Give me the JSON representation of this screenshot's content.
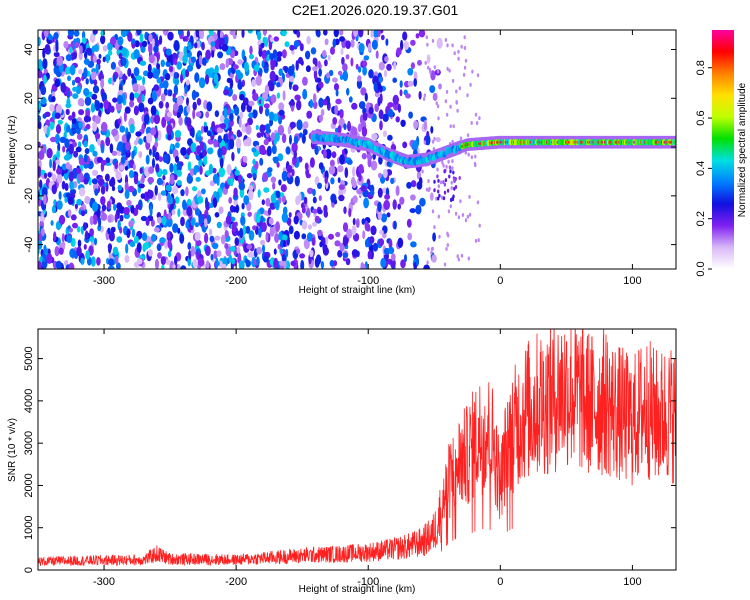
{
  "title": "C2E1.2026.020.19.37.G01",
  "chart_data": [
    {
      "type": "heatmap",
      "title": "C2E1.2026.020.19.37.G01",
      "xlabel": "Height of straight line (km)",
      "ylabel": "Frequency (Hz)",
      "xlim": [
        -350,
        133
      ],
      "ylim": [
        -50,
        48
      ],
      "xticks": [
        -300,
        -200,
        -100,
        0,
        100
      ],
      "yticks": [
        -40,
        -20,
        0,
        20,
        40
      ],
      "colorbar": {
        "label": "Normalized spectral amplitude",
        "range": [
          0,
          0.95
        ],
        "ticks": [
          0.0,
          0.2,
          0.4,
          0.6,
          0.8
        ],
        "colormap": [
          "#ffffff",
          "#d8b8f8",
          "#7f20f0",
          "#1010e0",
          "#0080ff",
          "#00e0e0",
          "#00e000",
          "#c0ff00",
          "#ffe000",
          "#ff8000",
          "#ff0000",
          "#ff00a0"
        ]
      },
      "ridge": {
        "description_points": [
          {
            "x": -140,
            "y": 4
          },
          {
            "x": -120,
            "y": 3
          },
          {
            "x": -100,
            "y": 1
          },
          {
            "x": -85,
            "y": -3
          },
          {
            "x": -70,
            "y": -6
          },
          {
            "x": -55,
            "y": -5
          },
          {
            "x": -40,
            "y": -2
          },
          {
            "x": -25,
            "y": 1
          },
          {
            "x": 0,
            "y": 2
          },
          {
            "x": 50,
            "y": 2
          },
          {
            "x": 100,
            "y": 2
          },
          {
            "x": 133,
            "y": 2
          }
        ],
        "peak_amplitude_region_x": [
          -30,
          133
        ],
        "peak_amplitude": 0.9
      },
      "noise_floor_x_range": [
        -350,
        -55
      ],
      "secondary_feature": {
        "x": -320,
        "y": 8
      }
    },
    {
      "type": "line",
      "xlabel": "Height of straight line (km)",
      "ylabel": "SNR (10 * v/v)",
      "xlim": [
        -350,
        133
      ],
      "ylim": [
        0,
        5700
      ],
      "xticks": [
        -300,
        -200,
        -100,
        0,
        100
      ],
      "yticks": [
        0,
        1000,
        2000,
        3000,
        4000,
        5000
      ],
      "color": "#ff2020",
      "series": [
        {
          "name": "SNR",
          "x": [
            -350,
            -320,
            -300,
            -270,
            -260,
            -250,
            -220,
            -200,
            -180,
            -160,
            -140,
            -120,
            -100,
            -90,
            -80,
            -70,
            -60,
            -55,
            -50,
            -45,
            -40,
            -35,
            -30,
            -25,
            -20,
            -15,
            -10,
            -5,
            0,
            5,
            10,
            15,
            20,
            25,
            30,
            35,
            40,
            45,
            50,
            55,
            60,
            65,
            70,
            75,
            80,
            85,
            90,
            95,
            100,
            105,
            110,
            115,
            120,
            125,
            133
          ],
          "y": [
            200,
            220,
            230,
            240,
            380,
            260,
            250,
            240,
            280,
            320,
            360,
            380,
            420,
            460,
            500,
            560,
            650,
            750,
            900,
            1400,
            2000,
            2400,
            2600,
            2700,
            3000,
            3200,
            3300,
            3000,
            2000,
            3000,
            3300,
            3600,
            3800,
            3800,
            4000,
            4000,
            4100,
            4200,
            4300,
            4200,
            4100,
            4000,
            3900,
            3950,
            4000,
            3800,
            3700,
            3600,
            3500,
            3700,
            3900,
            3700,
            3600,
            3700,
            3700
          ]
        }
      ]
    }
  ]
}
